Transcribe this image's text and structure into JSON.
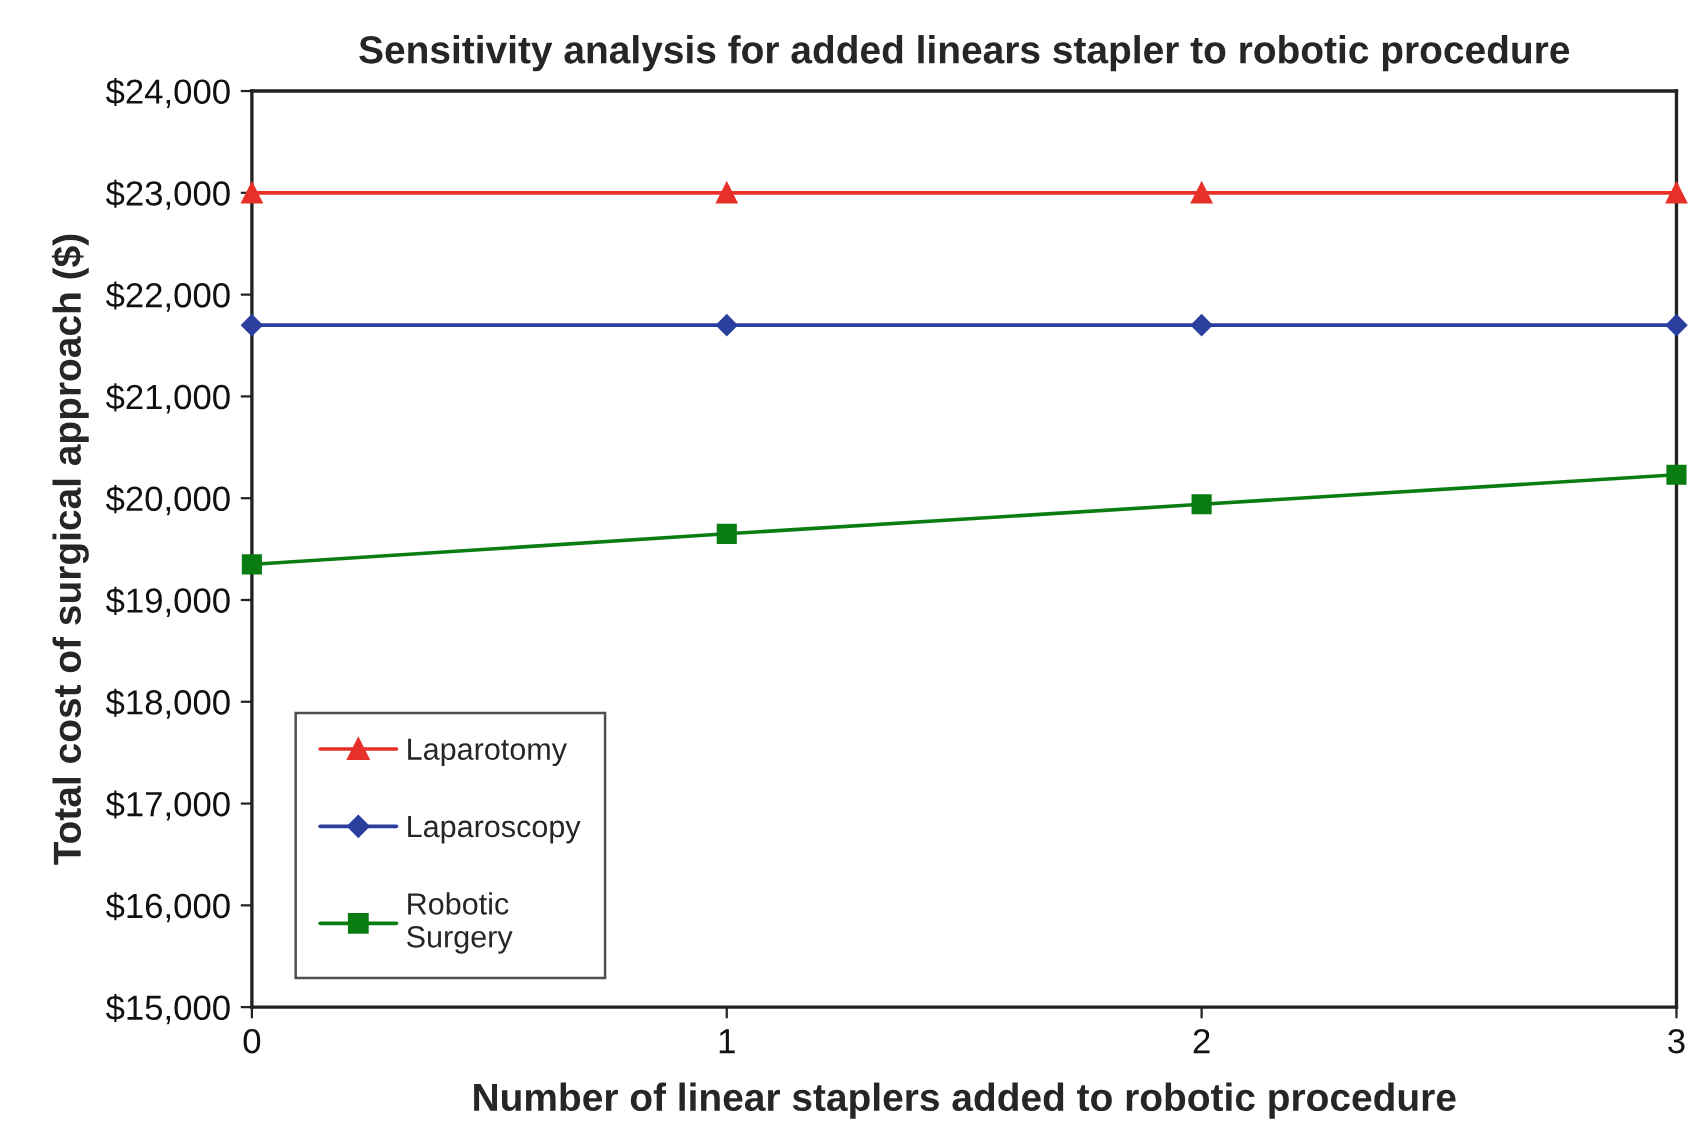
{
  "chart_data": {
    "type": "line",
    "title": "Sensitivity analysis for added linears stapler to robotic procedure",
    "xlabel": "Number of linear staplers added to robotic procedure",
    "ylabel": "Total cost of surgical approach ($)",
    "x": [
      0,
      1,
      2,
      3
    ],
    "series": [
      {
        "name": "Laparotomy",
        "color": "#e8302a",
        "marker": "triangle",
        "values": [
          23000,
          23000,
          23000,
          23000
        ]
      },
      {
        "name": "Laparoscopy",
        "color": "#2b3f9e",
        "marker": "diamond",
        "values": [
          21700,
          21700,
          21700,
          21700
        ]
      },
      {
        "name": "Robotic\nSurgery",
        "color": "#0a7d12",
        "marker": "square",
        "values": [
          19350,
          19650,
          19940,
          20230
        ]
      }
    ],
    "xlim": [
      0,
      3
    ],
    "xticks": [
      0,
      1,
      2,
      3
    ],
    "ylim": [
      15000,
      24000
    ],
    "yticks": [
      {
        "value": 15000,
        "label": "$15,000"
      },
      {
        "value": 16000,
        "label": "$16,000"
      },
      {
        "value": 17000,
        "label": "$17,000"
      },
      {
        "value": 18000,
        "label": "$18,000"
      },
      {
        "value": 19000,
        "label": "$19,000"
      },
      {
        "value": 20000,
        "label": "$20,000"
      },
      {
        "value": 21000,
        "label": "$21,000"
      },
      {
        "value": 22000,
        "label": "$22,000"
      },
      {
        "value": 23000,
        "label": "$23,000"
      },
      {
        "value": 24000,
        "label": "$24,000"
      }
    ],
    "grid": false,
    "legend": "bottom left",
    "line_style": "solid"
  }
}
